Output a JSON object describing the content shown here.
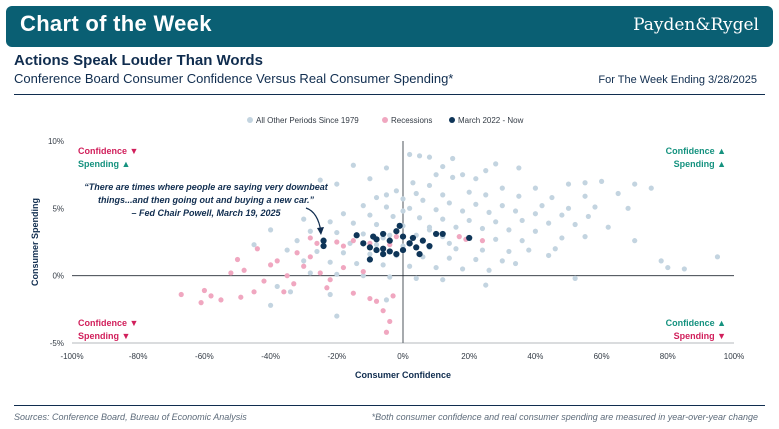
{
  "header": {
    "banner_title": "Chart of the Week",
    "logo_text": "Payden&Rygel",
    "headline": "Actions Speak Louder Than Words",
    "subtitle": "Conference Board Consumer Confidence Versus Real Consumer Spending*",
    "week_label": "For The Week Ending 3/28/2025"
  },
  "footer": {
    "sources": "Sources: Conference Board, Bureau of Economic Analysis",
    "footnote": "*Both consumer confidence and real consumer spending are measured in year-over-year change"
  },
  "colors": {
    "banner": "#0a5f73",
    "navy": "#102d4f",
    "other": "#c3d4e0",
    "recession": "#f0a7c0",
    "recent": "#0e3558",
    "down": "#d11f5b",
    "up": "#15927f"
  },
  "chart_data": {
    "type": "scatter",
    "xlabel": "Consumer Confidence",
    "ylabel": "Consumer Spending",
    "xlim": [
      -100,
      100
    ],
    "ylim": [
      -5,
      10
    ],
    "xticks": [
      "-100%",
      "-80%",
      "-60%",
      "-40%",
      "-20%",
      "0%",
      "20%",
      "40%",
      "60%",
      "80%",
      "100%"
    ],
    "yticks": [
      "-5%",
      "0%",
      "5%",
      "10%"
    ],
    "legend": [
      "All Other Periods Since 1979",
      "Recessions",
      "March 2022 - Now"
    ],
    "quadrant_labels": {
      "top_left": {
        "line1": "Confidence",
        "arrow1": "▼",
        "line2": "Spending",
        "arrow2": "▲"
      },
      "top_right": {
        "line1": "Confidence",
        "arrow1": "▲",
        "line2": "Spending",
        "arrow2": "▲"
      },
      "bottom_left": {
        "line1": "Confidence",
        "arrow1": "▼",
        "line2": "Spending",
        "arrow2": "▼"
      },
      "bottom_right": {
        "line1": "Confidence",
        "arrow1": "▲",
        "line2": "Spending",
        "arrow2": "▼"
      }
    },
    "annotation": {
      "line1": "“There are times where people are saying very downbeat",
      "line2": "things...and then going out and buying a new car.”",
      "line3": "– Fed Chair Powell, March 19, 2025"
    },
    "series": [
      {
        "name": "All Other Periods Since 1979",
        "points": [
          [
            2,
            9
          ],
          [
            5,
            8.9
          ],
          [
            8,
            8.8
          ],
          [
            -15,
            8.2
          ],
          [
            -5,
            8
          ],
          [
            12,
            8.1
          ],
          [
            18,
            7.5
          ],
          [
            22,
            7.2
          ],
          [
            28,
            8.3
          ],
          [
            35,
            8
          ],
          [
            25,
            7.8
          ],
          [
            -10,
            7.2
          ],
          [
            10,
            7.5
          ],
          [
            15,
            7.3
          ],
          [
            -20,
            6.8
          ],
          [
            3,
            6.9
          ],
          [
            8,
            6.7
          ],
          [
            30,
            6.5
          ],
          [
            20,
            6.2
          ],
          [
            40,
            6.5
          ],
          [
            50,
            6.8
          ],
          [
            55,
            6.9
          ],
          [
            60,
            7
          ],
          [
            70,
            6.8
          ],
          [
            -2,
            6.3
          ],
          [
            4,
            6.1
          ],
          [
            12,
            6
          ],
          [
            25,
            6
          ],
          [
            35,
            5.9
          ],
          [
            45,
            5.8
          ],
          [
            55,
            5.9
          ],
          [
            65,
            6.1
          ],
          [
            75,
            6.5
          ],
          [
            -8,
            5.8
          ],
          [
            0,
            5.7
          ],
          [
            6,
            5.6
          ],
          [
            14,
            5.4
          ],
          [
            22,
            5.3
          ],
          [
            30,
            5.2
          ],
          [
            42,
            5.2
          ],
          [
            50,
            5
          ],
          [
            58,
            5.1
          ],
          [
            68,
            5
          ],
          [
            -12,
            5.2
          ],
          [
            -5,
            5.1
          ],
          [
            2,
            5
          ],
          [
            10,
            4.9
          ],
          [
            18,
            4.8
          ],
          [
            26,
            4.7
          ],
          [
            34,
            4.8
          ],
          [
            40,
            4.6
          ],
          [
            48,
            4.5
          ],
          [
            56,
            4.4
          ],
          [
            -18,
            4.6
          ],
          [
            -10,
            4.5
          ],
          [
            -3,
            4.4
          ],
          [
            5,
            4.3
          ],
          [
            12,
            4.2
          ],
          [
            20,
            4.1
          ],
          [
            28,
            4
          ],
          [
            36,
            4.1
          ],
          [
            44,
            3.9
          ],
          [
            52,
            3.8
          ],
          [
            -22,
            4
          ],
          [
            -15,
            3.9
          ],
          [
            -8,
            3.8
          ],
          [
            0,
            3.7
          ],
          [
            8,
            3.6
          ],
          [
            16,
            3.6
          ],
          [
            24,
            3.5
          ],
          [
            32,
            3.4
          ],
          [
            40,
            3.3
          ],
          [
            -28,
            3.3
          ],
          [
            -20,
            3.2
          ],
          [
            -12,
            3.1
          ],
          [
            -4,
            3
          ],
          [
            4,
            3
          ],
          [
            12,
            2.9
          ],
          [
            20,
            2.8
          ],
          [
            28,
            2.7
          ],
          [
            36,
            2.6
          ],
          [
            48,
            2.8
          ],
          [
            -32,
            2.6
          ],
          [
            -24,
            2.5
          ],
          [
            -16,
            2.4
          ],
          [
            -8,
            2.3
          ],
          [
            0,
            2.2
          ],
          [
            8,
            2.1
          ],
          [
            16,
            2
          ],
          [
            24,
            1.9
          ],
          [
            32,
            1.8
          ],
          [
            44,
            1.5
          ],
          [
            -35,
            1.9
          ],
          [
            -26,
            1.8
          ],
          [
            -18,
            1.7
          ],
          [
            -10,
            1.6
          ],
          [
            -2,
            1.5
          ],
          [
            6,
            1.4
          ],
          [
            14,
            1.3
          ],
          [
            22,
            1.2
          ],
          [
            30,
            1.1
          ],
          [
            -30,
            1.1
          ],
          [
            -22,
            1
          ],
          [
            -14,
            0.9
          ],
          [
            -6,
            0.8
          ],
          [
            2,
            0.7
          ],
          [
            10,
            0.6
          ],
          [
            18,
            0.5
          ],
          [
            26,
            0.4
          ],
          [
            -28,
            0.2
          ],
          [
            -20,
            0.1
          ],
          [
            -12,
            0
          ],
          [
            -4,
            -0.1
          ],
          [
            4,
            -0.2
          ],
          [
            12,
            -0.3
          ],
          [
            25,
            -0.7
          ],
          [
            52,
            -0.2
          ],
          [
            80,
            0.6
          ],
          [
            85,
            0.5
          ],
          [
            95,
            1.4
          ],
          [
            70,
            2.6
          ],
          [
            78,
            1.1
          ],
          [
            -38,
            -0.8
          ],
          [
            -34,
            -1.2
          ],
          [
            -22,
            -1.4
          ],
          [
            -5,
            -1.8
          ],
          [
            -40,
            -2.2
          ],
          [
            -20,
            -3
          ],
          [
            -40,
            3.4
          ],
          [
            -45,
            2.3
          ],
          [
            -25,
            7.1
          ],
          [
            15,
            8.7
          ],
          [
            -5,
            6
          ],
          [
            0,
            4.8
          ],
          [
            8,
            3.4
          ],
          [
            -6,
            2.8
          ],
          [
            14,
            2.4
          ],
          [
            38,
            1.9
          ],
          [
            -30,
            4.2
          ],
          [
            62,
            3.6
          ],
          [
            55,
            2.9
          ],
          [
            46,
            2
          ],
          [
            34,
            0.9
          ]
        ]
      },
      {
        "name": "Recessions",
        "points": [
          [
            -67,
            -1.4
          ],
          [
            -60,
            -1.1
          ],
          [
            -58,
            -1.5
          ],
          [
            -55,
            -1.8
          ],
          [
            -61,
            -2
          ],
          [
            -52,
            0.2
          ],
          [
            -50,
            1.2
          ],
          [
            -48,
            0.4
          ],
          [
            -45,
            -1.2
          ],
          [
            -49,
            -1.6
          ],
          [
            -40,
            0.8
          ],
          [
            -38,
            1.1
          ],
          [
            -42,
            -0.4
          ],
          [
            -36,
            -1.2
          ],
          [
            -33,
            -0.6
          ],
          [
            -30,
            0.7
          ],
          [
            -28,
            1.4
          ],
          [
            -25,
            0.2
          ],
          [
            -22,
            -0.3
          ],
          [
            -18,
            0.6
          ],
          [
            -20,
            2.5
          ],
          [
            -18,
            2.2
          ],
          [
            -15,
            2.6
          ],
          [
            -12,
            0.3
          ],
          [
            -10,
            -1.7
          ],
          [
            -8,
            -1.9
          ],
          [
            -6,
            -2.6
          ],
          [
            -5,
            -4.2
          ],
          [
            -4,
            -3.4
          ],
          [
            -15,
            -1.3
          ],
          [
            -32,
            1.7
          ],
          [
            -28,
            2.8
          ],
          [
            -26,
            2.4
          ],
          [
            -35,
            0
          ],
          [
            -23,
            -0.9
          ],
          [
            -10,
            2.4
          ],
          [
            17,
            2.9
          ],
          [
            19,
            2.7
          ],
          [
            24,
            2.6
          ],
          [
            -4,
            2.3
          ],
          [
            -2,
            2.9
          ],
          [
            -44,
            2
          ],
          [
            -3,
            -1.5
          ]
        ]
      },
      {
        "name": "March 2022 - Now",
        "points": [
          [
            -24,
            2.6
          ],
          [
            -24,
            2.2
          ],
          [
            -12,
            2.4
          ],
          [
            -10,
            2.1
          ],
          [
            -8,
            2.7
          ],
          [
            -6,
            3.1
          ],
          [
            -4,
            2.6
          ],
          [
            -2,
            3.3
          ],
          [
            0,
            2.9
          ],
          [
            2,
            2.4
          ],
          [
            4,
            2.1
          ],
          [
            6,
            2.6
          ],
          [
            8,
            2.2
          ],
          [
            -2,
            1.6
          ],
          [
            -6,
            1.6
          ],
          [
            -8,
            1.9
          ],
          [
            -10,
            1.2
          ],
          [
            -9,
            2.9
          ],
          [
            12,
            3.1
          ],
          [
            10,
            3.1
          ],
          [
            -14,
            3
          ],
          [
            -6,
            2
          ],
          [
            3,
            2.8
          ],
          [
            5,
            1.6
          ],
          [
            0,
            1.9
          ],
          [
            -1,
            3.7
          ],
          [
            20,
            2.8
          ],
          [
            -4,
            1.8
          ],
          [
            2,
            2.4
          ]
        ]
      }
    ]
  }
}
